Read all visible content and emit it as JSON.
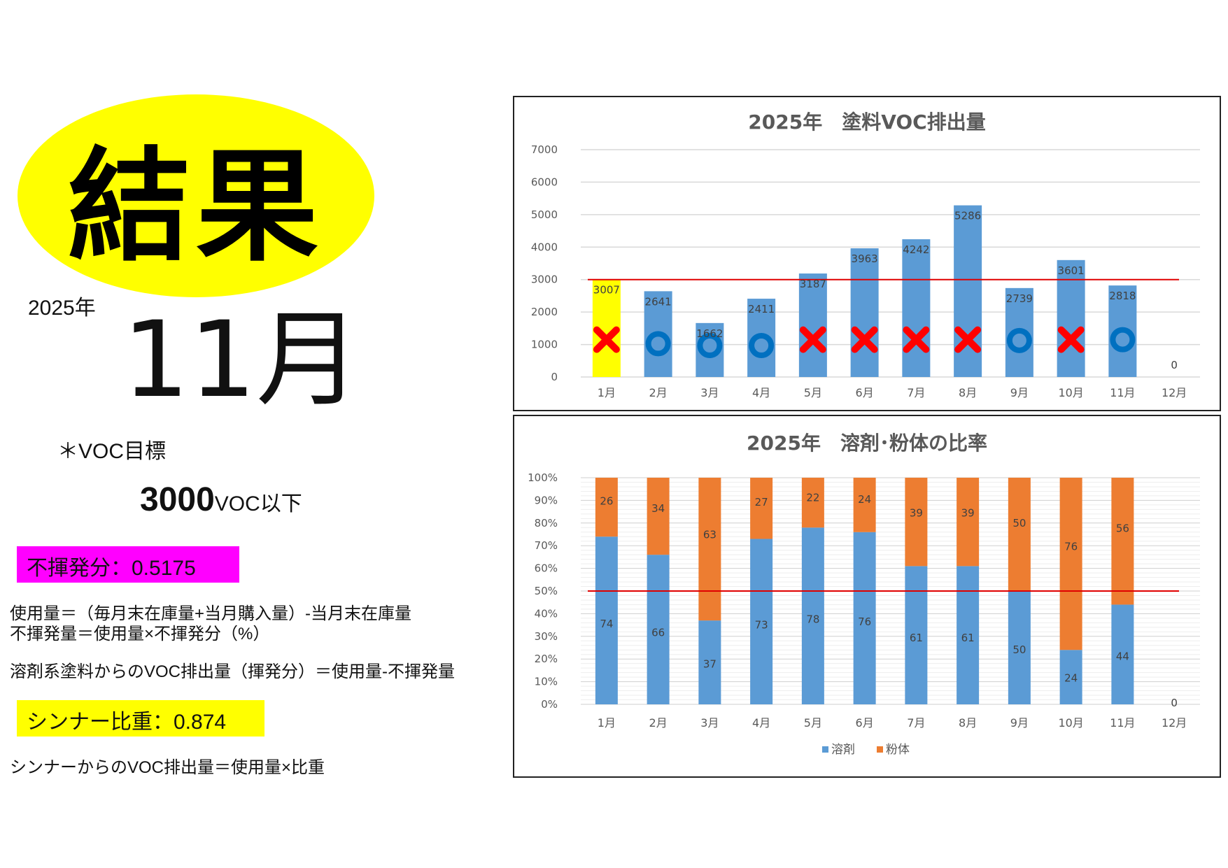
{
  "left_panel": {
    "result_title": "結果",
    "year": "2025年",
    "month": "11月",
    "voc_target_label": "＊VOC目標",
    "voc_target_number": "3000",
    "voc_target_unit": "VOC以下",
    "nonvolatile_tag": "不揮発分：0.5175",
    "formula_lines": [
      "使用量＝（毎月末在庫量+当月購入量）-当月末在庫量",
      "不揮発量＝使用量×不揮発分（%）",
      "溶剤系塗料からのVOC排出量（揮発分）＝使用量-不揮発量"
    ],
    "thinner_tag": "シンナー比重：0.874",
    "thinner_formula": "シンナーからのVOC排出量＝使用量×比重",
    "colors": {
      "yellow": "#ffff00",
      "magenta": "#ff00ff"
    }
  },
  "chart_data": [
    {
      "type": "bar",
      "title": "2025年　塗料VOC排出量",
      "categories": [
        "1月",
        "2月",
        "3月",
        "4月",
        "5月",
        "6月",
        "7月",
        "8月",
        "9月",
        "10月",
        "11月",
        "12月"
      ],
      "values": [
        3007,
        2641,
        1662,
        2411,
        3187,
        3963,
        4242,
        5286,
        2739,
        3601,
        2818,
        0
      ],
      "ylim": [
        0,
        7000
      ],
      "yticks": [
        0,
        1000,
        2000,
        3000,
        4000,
        5000,
        6000,
        7000
      ],
      "target_line": 3000,
      "grid": true,
      "judgement_marks": [
        "cross",
        "circle",
        "circle",
        "circle",
        "cross",
        "cross",
        "cross",
        "cross",
        "circle",
        "cross",
        "circle",
        ""
      ],
      "highlight_first_bar_color": "#ffff00",
      "bar_color": "#5b9bd5",
      "target_line_color": "#e00000",
      "cross_color": "#ff0000",
      "circle_color": "#0070c0"
    },
    {
      "type": "bar",
      "stacked": true,
      "title": "2025年　溶剤･粉体の比率",
      "categories": [
        "1月",
        "2月",
        "3月",
        "4月",
        "5月",
        "6月",
        "7月",
        "8月",
        "9月",
        "10月",
        "11月",
        "12月"
      ],
      "series": [
        {
          "name": "溶剤",
          "values": [
            74,
            66,
            37,
            73,
            78,
            76,
            61,
            61,
            50,
            24,
            44,
            0
          ],
          "color": "#5b9bd5"
        },
        {
          "name": "粉体",
          "values": [
            26,
            34,
            63,
            27,
            22,
            24,
            39,
            39,
            50,
            76,
            56,
            0
          ],
          "color": "#ed7d31"
        }
      ],
      "ylim": [
        0,
        100
      ],
      "yticks": [
        "0%",
        "10%",
        "20%",
        "30%",
        "40%",
        "50%",
        "60%",
        "70%",
        "80%",
        "90%",
        "100%"
      ],
      "target_line": 50,
      "legend": "bottom",
      "grid": true,
      "target_line_color": "#e00000"
    }
  ]
}
